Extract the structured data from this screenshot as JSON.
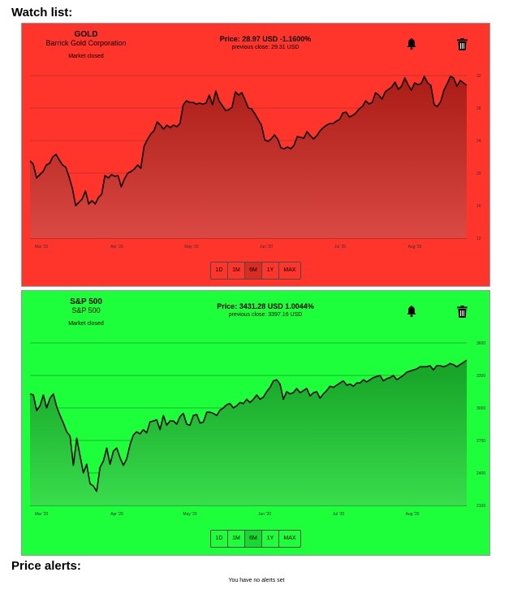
{
  "page": {
    "watchlist_heading": "Watch list:",
    "alerts_heading": "Price alerts:",
    "alerts_empty": "You have no alerts set"
  },
  "watchlist": [
    {
      "symbol": "GOLD",
      "name": "Barrick Gold Corporation",
      "status": "Market closed",
      "price_text": "Price: 28.97 USD -1.1600%",
      "prev_close_text": "previous close: 29.31 USD",
      "bg_color": "#ff352b",
      "fill_top": "#a51a14",
      "fill_bottom": "#d84a44",
      "grid_color": "#8a2a25",
      "icons": [
        "bell-icon",
        "trash-icon"
      ],
      "ranges": [
        "1D",
        "1M",
        "6M",
        "1Y",
        "MAX"
      ],
      "active_range": "6M",
      "chart_data": {
        "type": "area",
        "x_ticks": [
          "Mar '20",
          "Apr '20",
          "May '20",
          "Jun '20",
          "Jul '20",
          "Aug '20"
        ],
        "y_ticks": [
          "12",
          "16",
          "20",
          "24",
          "28",
          "32"
        ],
        "ylim": [
          12,
          32
        ],
        "grid": true,
        "values": [
          21.5,
          21.1,
          19.4,
          19.8,
          20.2,
          21.0,
          21.2,
          22.0,
          22.3,
          21.6,
          21.0,
          20.7,
          19.5,
          18.1,
          16.0,
          16.4,
          16.8,
          17.8,
          16.2,
          16.6,
          16.2,
          17.0,
          17.4,
          19.7,
          19.4,
          19.8,
          19.6,
          19.7,
          18.3,
          19.3,
          20.0,
          20.2,
          20.5,
          21.0,
          20.6,
          23.3,
          24.1,
          24.8,
          25.2,
          26.3,
          25.9,
          25.4,
          25.9,
          25.6,
          25.9,
          25.7,
          26.1,
          28.4,
          28.9,
          28.7,
          28.7,
          28.5,
          28.6,
          28.5,
          28.6,
          29.6,
          28.4,
          30.1,
          28.9,
          28.3,
          27.7,
          27.8,
          28.1,
          30.0,
          29.6,
          29.9,
          29.0,
          28.0,
          27.9,
          27.3,
          26.6,
          25.9,
          24.1,
          23.9,
          24.2,
          24.7,
          24.2,
          23.1,
          23.0,
          23.2,
          23.0,
          23.4,
          24.5,
          24.4,
          24.3,
          25.1,
          24.6,
          24.2,
          24.6,
          25.2,
          25.6,
          25.9,
          26.1,
          26.1,
          26.4,
          26.6,
          27.4,
          27.5,
          26.9,
          27.1,
          27.4,
          27.9,
          28.2,
          28.9,
          28.5,
          28.7,
          29.9,
          29.6,
          29.1,
          30.0,
          30.3,
          30.6,
          31.2,
          30.3,
          30.7,
          31.7,
          30.9,
          30.2,
          31.1,
          30.9,
          31.0,
          31.9,
          31.1,
          30.8,
          28.4,
          28.2,
          28.8,
          30.2,
          31.0,
          31.9,
          31.7,
          30.7,
          31.4,
          31.1,
          30.8
        ]
      }
    },
    {
      "symbol": "S&P 500",
      "name": "S&P 500",
      "status": "Market closed",
      "price_text": "Price: 3431.28 USD 1.0044%",
      "prev_close_text": "previous close: 3397.16 USD",
      "bg_color": "#1dff3a",
      "fill_top": "#159c24",
      "fill_bottom": "#3adb4e",
      "grid_color": "#1b6b25",
      "icons": [
        "bell-icon",
        "trash-icon"
      ],
      "ranges": [
        "1D",
        "1M",
        "6M",
        "1Y",
        "MAX"
      ],
      "active_range": "6M",
      "chart_data": {
        "type": "area",
        "x_ticks": [
          "Mar '20",
          "Apr '20",
          "May '20",
          "Jun '20",
          "Jul '20",
          "Aug '20"
        ],
        "y_ticks": [
          "2100",
          "2400",
          "2700",
          "3000",
          "3300",
          "3600"
        ],
        "ylim": [
          2100,
          3600
        ],
        "grid": true,
        "values": [
          3130,
          3120,
          2975,
          3020,
          3120,
          3000,
          3090,
          3130,
          3010,
          2930,
          2860,
          2780,
          2740,
          2470,
          2720,
          2560,
          2400,
          2480,
          2300,
          2280,
          2230,
          2450,
          2510,
          2630,
          2480,
          2600,
          2630,
          2540,
          2470,
          2530,
          2660,
          2750,
          2780,
          2760,
          2800,
          2770,
          2870,
          2880,
          2890,
          2800,
          2930,
          2840,
          2880,
          2880,
          2850,
          2920,
          2950,
          2850,
          2840,
          2930,
          2940,
          2860,
          2870,
          2960,
          2960,
          2950,
          2930,
          2980,
          3000,
          3030,
          3040,
          3000,
          3020,
          3050,
          3040,
          3080,
          3050,
          3080,
          3120,
          3080,
          3100,
          3150,
          3190,
          3250,
          3260,
          3220,
          3080,
          3150,
          3130,
          3140,
          3180,
          3140,
          3160,
          3180,
          3110,
          3140,
          3150,
          3090,
          3130,
          3160,
          3200,
          3190,
          3210,
          3230,
          3250,
          3210,
          3220,
          3200,
          3230,
          3230,
          3260,
          3240,
          3260,
          3280,
          3290,
          3300,
          3250,
          3270,
          3280,
          3300,
          3260,
          3280,
          3300,
          3330,
          3340,
          3350,
          3360,
          3380,
          3380,
          3380,
          3390,
          3350,
          3390,
          3390,
          3380,
          3390,
          3410,
          3400,
          3380,
          3400,
          3420,
          3440
        ]
      }
    }
  ]
}
